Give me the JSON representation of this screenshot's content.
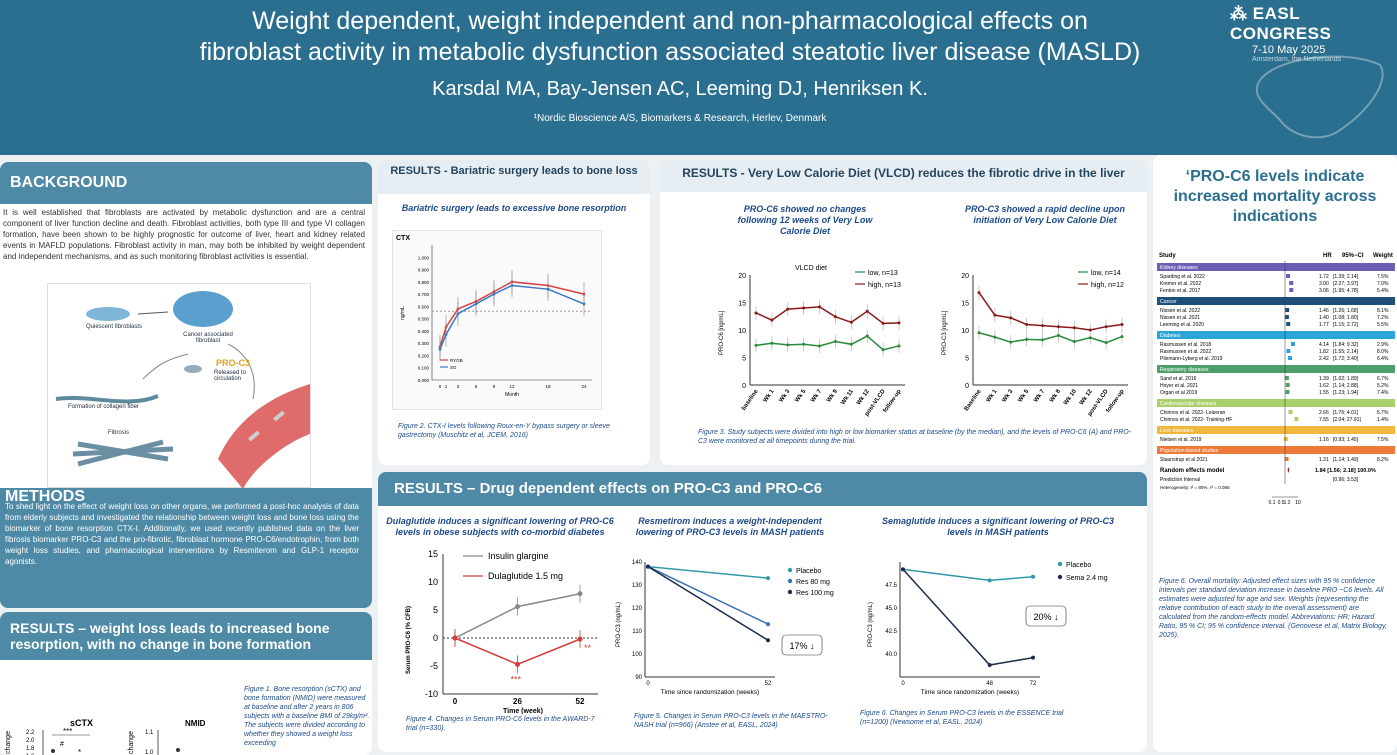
{
  "header": {
    "title_line1": "Weight dependent, weight independent and non-pharmacological effects on",
    "title_line2": "fibroblast activity in metabolic dysfunction associated steatotic liver disease (MASLD)",
    "authors": "Karsdal MA, Bay-Jensen AC, Leeming DJ, Henriksen K.",
    "affiliation": "¹Nordic Bioscience A/S, Biomarkers & Research, Herlev, Denmark",
    "congress": "EASL CONGRESS",
    "dates": "7-10 May 2025",
    "city": "Amsterdam, the Netherlands"
  },
  "background": {
    "heading": "BACKGROUND",
    "text": "It is well established that fibroblasts are activated by metabolic dysfunction and are a central component of liver function decline and death. Fibroblast activities, both type III and type VI collagen formation, have been shown to be highly prognostic for outcome of liver, heart and kidney related events in MAFLD populations. Fibroblast activity in man, may both be inhibited by weight dependent and independent mechanisms, and as such monitoring fibroblast activities is essential.",
    "diagram": {
      "quiescent": "Quiescent fibroblasts",
      "cancer": "Cancer associated fibroblast",
      "pro_c3": "PRO-C3",
      "released": "Released to circulation",
      "formation": "Formation of collagen fiber",
      "fibrosis": "Fibrosis"
    }
  },
  "methods": {
    "heading": "METHODS",
    "text": "To shed light on the effect of weight loss on other organs, we performed a post-hoc analysis of data from elderly subjects and investigated the relationship between weight loss and bone loss using the biomarker of bone resorption CTX-I. Additionally, we used recently published data on the liver fibrosis biomarker PRO-C3 and the pro-fibrotic, fibroblast hormone PRO-C6/endotrophin, from both weight loss studies, and pharmacological interventions by Resmiterom and GLP-1 receptor agonists."
  },
  "weightloss": {
    "heading": "RESULTS – weight loss leads to increased bone resorption, with no change in bone formation",
    "chart1_title": "sCTX",
    "chart2_title": "NMID",
    "y1_label": "change",
    "y2_label": "change",
    "sig1": "***",
    "sig2": "#",
    "sig3": "*",
    "caption": "Figure 1. Bone resorption (sCTX) and bone formation (NMID) were measured at baseline and after 2 years in 806 subjects with a baseline BMI of 29kg/m². The subjects were divided according to whether they showed a weight loss exceeding"
  },
  "bariatric": {
    "heading": "RESULTS - Bariatric surgery leads to bone loss",
    "subtitle": "Bariatric surgery leads to excessive bone resorption",
    "chart_label": "CTX",
    "ylabel": "ng/mL",
    "xlabel": "Month",
    "legend": [
      "RYGB",
      "SG"
    ],
    "caption": "Figure 2. CTX-I levels following Roux-en-Y bypass surgery or sleeve gastrectomy (Muschitz et al, JCEM, 2016)"
  },
  "vlcd": {
    "heading": "RESULTS - Very Low Calorie Diet (VLCD) reduces the fibrotic drive in the liver",
    "sub_a": "PRO-C6 showed no changes following 12 weeks of Very Low Calorie Diet",
    "sub_b": "PRO-C3 showed a rapid decline upon initiation of Very Low Calorie Diet",
    "chart_a_title": "VLCD diet",
    "chart_a_ylabel": "PRO-C6 [ng/mL]",
    "chart_b_ylabel": "PRO-C3 [ng/mL]",
    "legend_a": [
      "low, n=13",
      "high, n=13"
    ],
    "legend_b": [
      "low, n=14",
      "high, n=12"
    ],
    "caption": "Figure 3. Study subjects were divided into high or low biomarker status at baseline (by the median), and the levels of PRO-C6 (A) and PRO-C3 were monitored at all timepoints during the trial."
  },
  "drug": {
    "heading": "RESULTS – Drug dependent effects on PRO-C3 and PRO-C6",
    "dula_sub": "Dulaglutide induces a significant lowering of PRO-C6 levels in obese subjects with co-morbid diabetes",
    "dula_ylabel": "Serum PRO-C6 (% CFB)",
    "dula_xlabel": "Time (week)",
    "dula_legend": [
      "Insulin glargine",
      "Dulaglutide 1.5 mg"
    ],
    "dula_sig1": "***",
    "dula_sig2": "**",
    "dula_caption": "Figure 4. Changes in Serum PRO-C6 levels in the AWARD-7 trial (n=330).",
    "res_sub": "Resmetirom induces a weight-independent lowering of PRO-C3 levels in MASH patients",
    "res_ylabel": "PRO-C3 (ng/mL)",
    "res_xlabel": "Time since randomization (weeks)",
    "res_legend": [
      "Placebo",
      "Res 80 mg",
      "Res 100 mg"
    ],
    "res_box": "17% ↓",
    "res_caption": "Figure 5. Changes in Serum PRO-C3 levels in the MAESTRO-NASH trial (n=966) (Anstee et al, EASL, 2024)",
    "sema_sub": "Semaglutide induces a significant lowering of PRO-C3 levels in MASH patients",
    "sema_ylabel": "PRO-C3 (ng/mL)",
    "sema_xlabel": "Time since randomization (weeks)",
    "sema_legend": [
      "Placebo",
      "Sema 2.4 mg"
    ],
    "sema_box": "20% ↓",
    "sema_caption": "Figure 6. Changes in Serum PRO-C3 levels in the ESSENCE trial (n=1200) (Newsome et al, EASL, 2024)"
  },
  "mortality": {
    "heading": "‘PRO-C6 levels indicate increased mortality across indications",
    "col_study": "Study",
    "col_hr": "HR",
    "col_ci": "95%−CI",
    "col_weight": "Weight",
    "groups": [
      {
        "name": "Kidney diseases",
        "color": "#6a5fb5",
        "rows": [
          {
            "study": "Sparding et al. 2022",
            "hr": "1.72",
            "ci": "[1.39; 2.14]",
            "w": "7.5%",
            "est": 1.72
          },
          {
            "study": "Kremer et al. 2022",
            "hr": "3.00",
            "ci": "[2.27; 3.97]",
            "w": "7.0%",
            "est": 3.0
          },
          {
            "study": "Fenton et al. 2017",
            "hr": "3.06",
            "ci": "[1.95; 4.78]",
            "w": "5.4%",
            "est": 3.06
          }
        ]
      },
      {
        "name": "Cancer",
        "color": "#1e4f7a",
        "rows": [
          {
            "study": "Nissen et al. 2022",
            "hr": "1.46",
            "ci": "[1.26; 1.68]",
            "w": "8.1%",
            "est": 1.46
          },
          {
            "study": "Nissen et al. 2021",
            "hr": "1.40",
            "ci": "[1.08; 1.80]",
            "w": "7.2%",
            "est": 1.4
          },
          {
            "study": "Leeming et al. 2020",
            "hr": "1.77",
            "ci": "[1.15; 2.72]",
            "w": "5.5%",
            "est": 1.77
          }
        ]
      },
      {
        "name": "Diabetes",
        "color": "#2aa5d8",
        "rows": [
          {
            "study": "Rasmussen et al. 2018",
            "hr": "4.14",
            "ci": "[1.84; 9.32]",
            "w": "2.9%",
            "est": 4.14
          },
          {
            "study": "Rasmussen et al. 2022",
            "hr": "1.82",
            "ci": "[1.55; 2.14]",
            "w": "8.0%",
            "est": 1.82
          },
          {
            "study": "Pilemann-Lyberg et al. 2019",
            "hr": "2.42",
            "ci": "[1.72; 3.40]",
            "w": "6.4%",
            "est": 2.42
          }
        ]
      },
      {
        "name": "Respiratory diseases",
        "color": "#4e9e6a",
        "rows": [
          {
            "study": "Sand et al. 2016",
            "hr": "1.39",
            "ci": "[1.02; 1.89]",
            "w": "6.7%",
            "est": 1.39
          },
          {
            "study": "Hoyer et al. 2021",
            "hr": "1.62",
            "ci": "[1.14; 2.88]",
            "w": "5.2%",
            "est": 1.62
          },
          {
            "study": "Organ et al 2019",
            "hr": "1.55",
            "ci": "[1.23; 1.94]",
            "w": "7.4%",
            "est": 1.55
          }
        ]
      },
      {
        "name": "Cardiovascular diseases",
        "color": "#a8cf6a",
        "rows": [
          {
            "study": "Chirinos et al. 2022- Leizeran",
            "hr": "2.66",
            "ci": "[1.76; 4.01]",
            "w": "5.7%",
            "est": 2.66
          },
          {
            "study": "Chirinos et al. 2022- Training-HF",
            "hr": "7.55",
            "ci": "[2.04; 27.91]",
            "w": "1.4%",
            "est": 7.55
          }
        ]
      },
      {
        "name": "Liver diseases",
        "color": "#f0b83c",
        "rows": [
          {
            "study": "Nielsen et al. 2019",
            "hr": "1.16",
            "ci": "[0.93; 1.45]",
            "w": "7.5%",
            "est": 1.16
          }
        ]
      },
      {
        "name": "Population-based studies",
        "color": "#ee7a3a",
        "rows": [
          {
            "study": "Staunstrup et al 2021",
            "hr": "1.31",
            "ci": "[1.14; 1.49]",
            "w": "8.2%",
            "est": 1.31
          }
        ]
      }
    ],
    "re_label": "Random effects model",
    "re_value": "1.84 [1.56; 2.18] 100.0%",
    "pi_label": "Prediction Interval",
    "pi_value": "[0.96; 3.53]",
    "het": "Heterogeneity: I² = 80%, τ² = 0.086",
    "axis_ticks": [
      "0.1",
      "0.5",
      "1",
      "2",
      "10"
    ],
    "caption": "Figure 6. Overall mortality: Adjusted effect sizes with 95 % confidence intervals per standard deviation increase in baseline PRO −C6 levels. All estimates were adjusted for age and sex. Weights (representing the relative contribution of each study to the overall assessment) are calculated from the random-effects model. Abbreviations: HR; Hazard Ratio, 95 % CI; 95 % confidence interval. (Genovese et al, Matrix Biology, 2025)."
  },
  "chart_data": [
    {
      "type": "line",
      "title": "CTX",
      "xlabel": "Month",
      "ylabel": "ng/mL",
      "x": [
        0,
        1,
        3,
        6,
        9,
        12,
        18,
        24
      ],
      "series": [
        {
          "name": "RYGB",
          "values": [
            0.27,
            0.43,
            0.58,
            0.64,
            0.72,
            0.8,
            0.77,
            0.7
          ]
        },
        {
          "name": "SG",
          "values": [
            0.25,
            0.37,
            0.54,
            0.62,
            0.7,
            0.77,
            0.74,
            0.62
          ]
        }
      ],
      "ylim": [
        0,
        1.1
      ]
    },
    {
      "type": "line",
      "title": "VLCD diet",
      "ylabel": "PRO-C6 [ng/mL]",
      "categories": [
        "baseline",
        "Wk 1",
        "Wk 3",
        "Wk 5",
        "Wk 7",
        "Wk 9",
        "Wk 11",
        "Wk 12",
        "post-VLCD",
        "follow-up"
      ],
      "series": [
        {
          "name": "low, n=13",
          "values": [
            7.2,
            7.6,
            7.3,
            7.4,
            7.1,
            7.9,
            7.4,
            8.9,
            6.4,
            7.1
          ]
        },
        {
          "name": "high, n=13",
          "values": [
            13.1,
            11.8,
            13.8,
            14.0,
            14.2,
            12.4,
            11.4,
            13.4,
            11.2,
            11.3
          ]
        }
      ],
      "ylim": [
        0,
        20
      ]
    },
    {
      "type": "line",
      "ylabel": "PRO-C3 [ng/mL]",
      "categories": [
        "Baseline",
        "Wk 1",
        "Wk 3",
        "Wk 5",
        "Wk 7",
        "Wk 8",
        "Wk 10",
        "Wk 12",
        "post-VLCD",
        "follow-up"
      ],
      "series": [
        {
          "name": "low, n=14",
          "values": [
            9.5,
            8.7,
            7.8,
            8.3,
            8.2,
            9.0,
            7.9,
            8.6,
            7.7,
            8.8
          ]
        },
        {
          "name": "high, n=12",
          "values": [
            16.8,
            12.7,
            12.2,
            11.0,
            10.8,
            10.6,
            10.4,
            10.0,
            10.6,
            11.0
          ]
        }
      ],
      "ylim": [
        0,
        20
      ]
    },
    {
      "type": "line",
      "xlabel": "Time (week)",
      "ylabel": "Serum PRO-C6 (% CFB)",
      "x": [
        0,
        26,
        52
      ],
      "series": [
        {
          "name": "Insulin glargine",
          "values": [
            0,
            5.6,
            7.9
          ]
        },
        {
          "name": "Dulaglutide 1.5 mg",
          "values": [
            0,
            -4.7,
            -0.2
          ]
        }
      ],
      "ylim": [
        -10,
        15
      ]
    },
    {
      "type": "line",
      "xlabel": "Time since randomization (weeks)",
      "ylabel": "PRO-C3 (ng/mL)",
      "x": [
        0,
        52
      ],
      "series": [
        {
          "name": "Placebo",
          "values": [
            138,
            133
          ]
        },
        {
          "name": "Res 80 mg",
          "values": [
            138,
            113
          ]
        },
        {
          "name": "Res 100 mg",
          "values": [
            138,
            106
          ]
        }
      ],
      "ylim": [
        90,
        140
      ]
    },
    {
      "type": "line",
      "xlabel": "Time since randomization (weeks)",
      "ylabel": "PRO-C3 (ng/mL)",
      "x": [
        0,
        48,
        72
      ],
      "series": [
        {
          "name": "Placebo",
          "values": [
            49.2,
            48.0,
            48.4
          ]
        },
        {
          "name": "Sema 2.4 mg",
          "values": [
            49.2,
            38.8,
            39.6
          ]
        }
      ],
      "ylim": [
        37.5,
        50
      ]
    }
  ]
}
